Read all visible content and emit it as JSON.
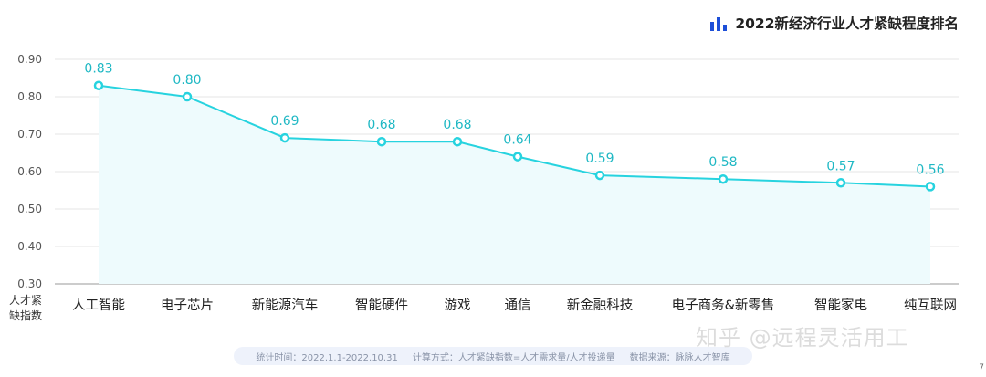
{
  "title": "2022新经济行业人才紧缺程度排名",
  "icon": "bar-chart-icon",
  "colors": {
    "line": "#27d3df",
    "area": "#eefbfd",
    "label": "#1fb8c4",
    "title_icon": "#1d4fd8",
    "grid": "#e6e6e6",
    "axis": "#9a9a9a"
  },
  "ylabel": "人才紧缺指数",
  "footnote": {
    "time": "统计时间：2022.1.1-2022.10.31",
    "method": "计算方式：人才紧缺指数=人才需求量/人才投递量",
    "source": "数据来源：脉脉人才智库"
  },
  "watermark": "知乎 @远程灵活用工",
  "edge_mark": "7",
  "chart_data": {
    "type": "line",
    "title": "2022新经济行业人才紧缺程度排名",
    "xlabel": "",
    "ylabel": "人才紧缺指数",
    "categories": [
      "人工智能",
      "电子芯片",
      "新能源汽车",
      "智能硬件",
      "游戏",
      "通信",
      "新金融科技",
      "电子商务&新零售",
      "智能家电",
      "纯互联网"
    ],
    "values": [
      0.83,
      0.8,
      0.69,
      0.68,
      0.68,
      0.64,
      0.59,
      0.58,
      0.57,
      0.56
    ],
    "ylim": [
      0.3,
      0.9
    ],
    "yticks": [
      "0.30",
      "0.40",
      "0.50",
      "0.60",
      "0.70",
      "0.80",
      "0.90"
    ],
    "grid": true,
    "area_fill": true,
    "legend": "none"
  }
}
